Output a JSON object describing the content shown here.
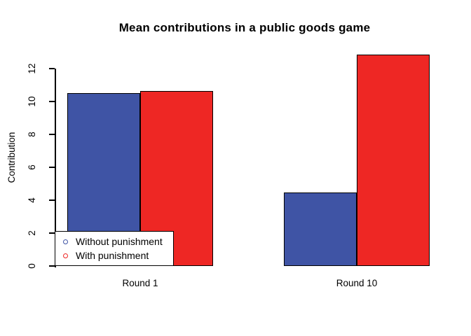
{
  "chart_data": {
    "type": "bar",
    "title": "Mean contributions in a public goods game",
    "xlabel": "",
    "ylabel": "Contribution",
    "categories": [
      "Round 1",
      "Round 10"
    ],
    "series": [
      {
        "name": "Without punishment",
        "color": "#3F54A5",
        "values": [
          10.5,
          4.45
        ]
      },
      {
        "name": "With punishment",
        "color": "#EE2724",
        "values": [
          10.65,
          12.85
        ]
      }
    ],
    "ylim": [
      0,
      13.3
    ],
    "yticks": [
      0,
      2,
      4,
      6,
      8,
      10,
      12
    ],
    "grid": false,
    "bar_outline": "#000000",
    "legend_position": "bottom-left",
    "legend_marker": "open-circle"
  }
}
